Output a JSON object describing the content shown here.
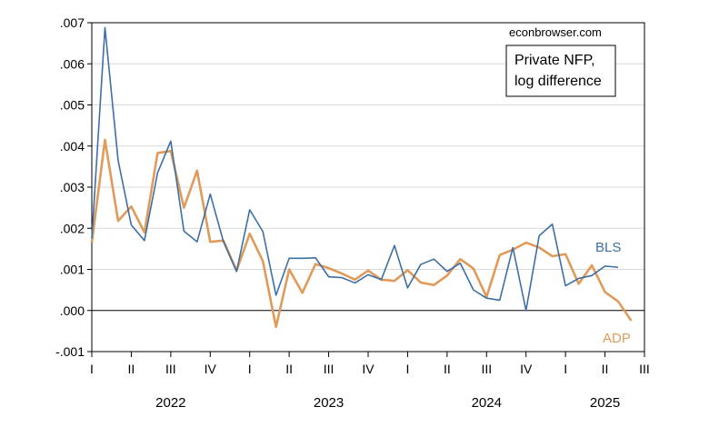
{
  "chart_data": {
    "type": "line",
    "title": "",
    "xlabel": "",
    "ylabel": "",
    "credit": "econbrowser.com",
    "legend_box": [
      "Private NFP,",
      "log difference"
    ],
    "ylim": [
      -0.001,
      0.007
    ],
    "y_ticks": [
      {
        "value": 0.007,
        "label": ".007"
      },
      {
        "value": 0.006,
        "label": ".006"
      },
      {
        "value": 0.005,
        "label": ".005"
      },
      {
        "value": 0.004,
        "label": ".004"
      },
      {
        "value": 0.003,
        "label": ".003"
      },
      {
        "value": 0.002,
        "label": ".002"
      },
      {
        "value": 0.001,
        "label": ".001"
      },
      {
        "value": 0.0,
        "label": ".000"
      },
      {
        "value": -0.001,
        "label": "-.001"
      }
    ],
    "x_range": [
      2022.0,
      2025.5
    ],
    "x_ticks": [
      {
        "value": 2022.0,
        "label": "I"
      },
      {
        "value": 2022.25,
        "label": "II"
      },
      {
        "value": 2022.5,
        "label": "III"
      },
      {
        "value": 2022.75,
        "label": "IV"
      },
      {
        "value": 2023.0,
        "label": "I"
      },
      {
        "value": 2023.25,
        "label": "II"
      },
      {
        "value": 2023.5,
        "label": "III"
      },
      {
        "value": 2023.75,
        "label": "IV"
      },
      {
        "value": 2024.0,
        "label": "I"
      },
      {
        "value": 2024.25,
        "label": "II"
      },
      {
        "value": 2024.5,
        "label": "III"
      },
      {
        "value": 2024.75,
        "label": "IV"
      },
      {
        "value": 2025.0,
        "label": "I"
      },
      {
        "value": 2025.25,
        "label": "II"
      },
      {
        "value": 2025.5,
        "label": "III"
      }
    ],
    "year_labels": [
      {
        "value": 2022.5,
        "label": "2022"
      },
      {
        "value": 2023.5,
        "label": "2023"
      },
      {
        "value": 2024.5,
        "label": "2024"
      },
      {
        "value": 2025.25,
        "label": "2025"
      }
    ],
    "series": [
      {
        "name": "BLS",
        "color": "#3d6fa5",
        "values": [
          0.00175,
          0.00688,
          0.00365,
          0.00208,
          0.0017,
          0.00335,
          0.00412,
          0.00193,
          0.00167,
          0.00283,
          0.00168,
          0.00095,
          0.00245,
          0.00192,
          0.00037,
          0.00127,
          0.00127,
          0.00128,
          0.00082,
          0.0008,
          0.00067,
          0.00087,
          0.00075,
          0.00158,
          0.00055,
          0.00112,
          0.00125,
          0.00095,
          0.00115,
          0.0005,
          0.0003,
          0.00025,
          0.00153,
          0.0,
          0.00182,
          0.0021,
          0.0006,
          0.00078,
          0.00085,
          0.00108,
          0.00105
        ]
      },
      {
        "name": "ADP",
        "color": "#e09a5a",
        "values": [
          0.00165,
          0.00415,
          0.00218,
          0.00253,
          0.0019,
          0.00383,
          0.00388,
          0.0025,
          0.0034,
          0.00167,
          0.0017,
          0.00097,
          0.00187,
          0.0012,
          -0.0004,
          0.001,
          0.00043,
          0.00113,
          0.00103,
          0.0009,
          0.00075,
          0.00097,
          0.00075,
          0.00072,
          0.00098,
          0.00068,
          0.00062,
          0.00085,
          0.00125,
          0.00102,
          0.00033,
          0.00135,
          0.00148,
          0.00165,
          0.00153,
          0.00132,
          0.00137,
          0.00065,
          0.0011,
          0.00045,
          0.00022,
          -0.00025
        ]
      }
    ],
    "series_labels": [
      {
        "name": "BLS",
        "text": "BLS"
      },
      {
        "name": "ADP",
        "text": "ADP"
      }
    ],
    "grid": true,
    "zero_line": true
  }
}
